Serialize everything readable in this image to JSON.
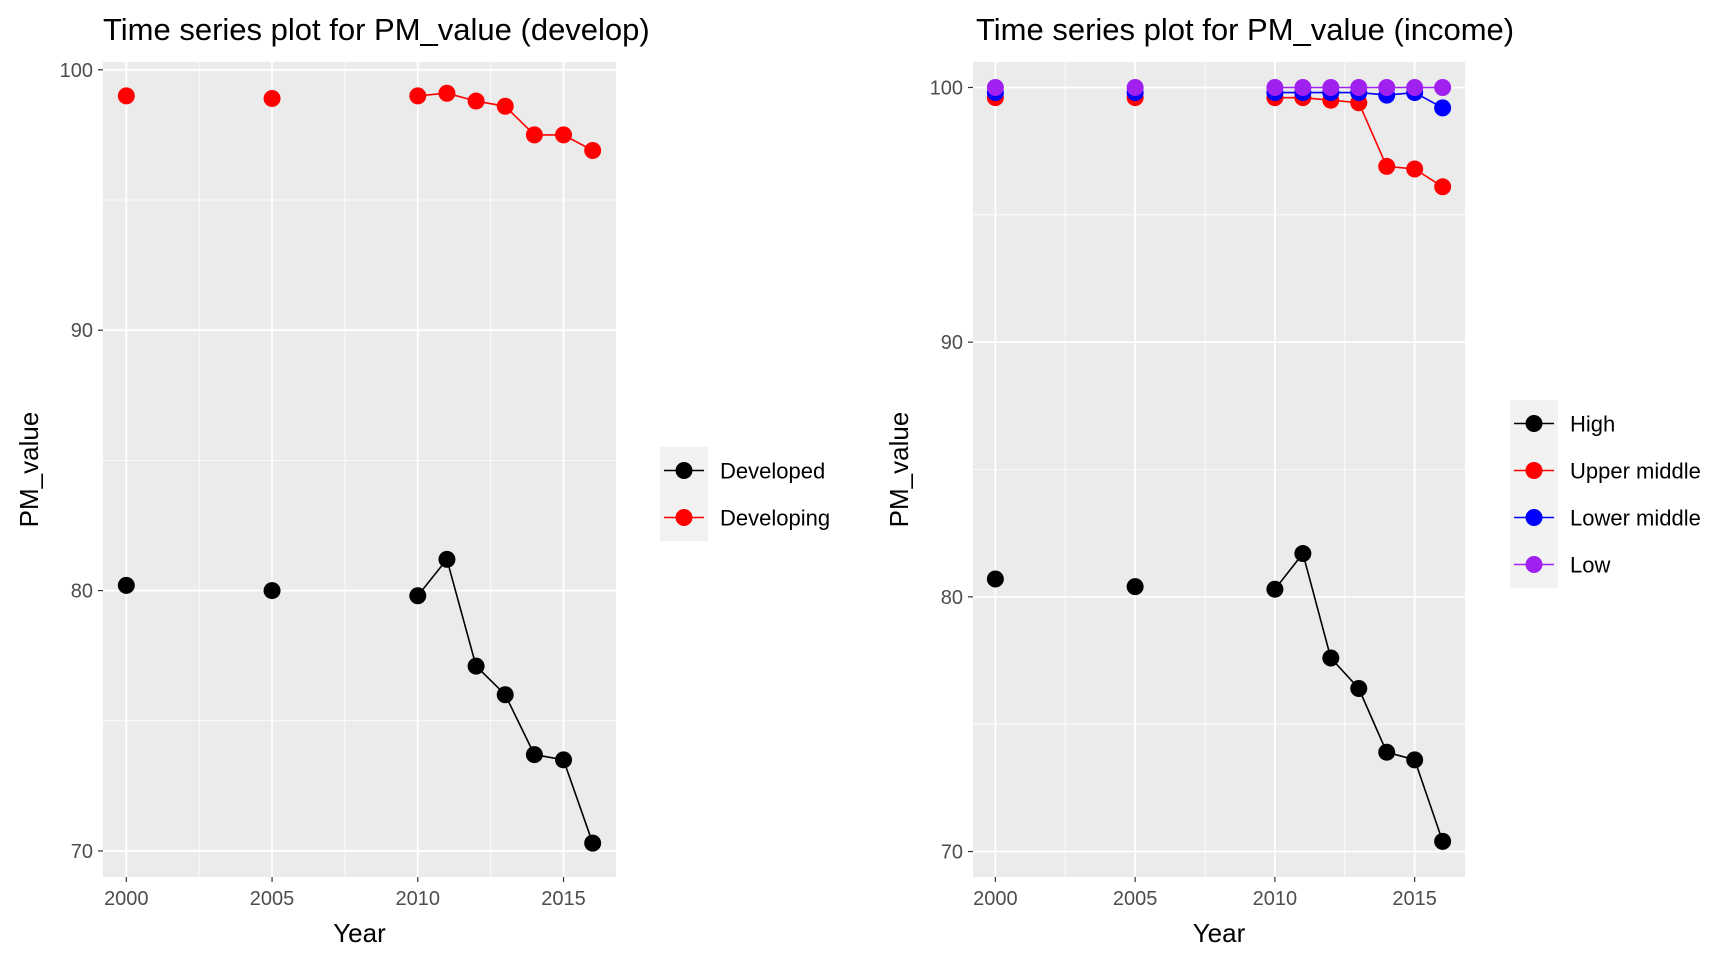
{
  "chart_data": [
    {
      "type": "line",
      "title": "Time series plot for PM_value (develop)",
      "xlabel": "Year",
      "ylabel": "PM_value",
      "xlim": [
        1999.2,
        2016.8
      ],
      "ylim": [
        69,
        100.3
      ],
      "xticks": [
        2000,
        2005,
        2010,
        2015
      ],
      "yticks": [
        70,
        80,
        90,
        100
      ],
      "grid": true,
      "legend_position": "right",
      "series": [
        {
          "name": "Developed",
          "color": "#000000",
          "x": [
            2000,
            2005,
            2010,
            2011,
            2012,
            2013,
            2014,
            2015,
            2016
          ],
          "values": [
            80.2,
            80.0,
            79.8,
            81.2,
            77.1,
            76.0,
            73.7,
            73.5,
            70.3
          ]
        },
        {
          "name": "Developing",
          "color": "#ff0000",
          "x": [
            2000,
            2005,
            2010,
            2011,
            2012,
            2013,
            2014,
            2015,
            2016
          ],
          "values": [
            99.0,
            98.9,
            99.0,
            99.1,
            98.8,
            98.6,
            97.5,
            97.5,
            96.9
          ]
        }
      ]
    },
    {
      "type": "line",
      "title": "Time series plot for PM_value (income)",
      "xlabel": "Year",
      "ylabel": "PM_value",
      "xlim": [
        1999.2,
        2016.8
      ],
      "ylim": [
        69,
        101
      ],
      "xticks": [
        2000,
        2005,
        2010,
        2015
      ],
      "yticks": [
        70,
        80,
        90,
        100
      ],
      "grid": true,
      "legend_position": "right",
      "series": [
        {
          "name": "High",
          "color": "#000000",
          "x": [
            2000,
            2005,
            2010,
            2011,
            2012,
            2013,
            2014,
            2015,
            2016
          ],
          "values": [
            80.7,
            80.4,
            80.3,
            81.7,
            77.6,
            76.4,
            73.9,
            73.6,
            70.4
          ]
        },
        {
          "name": "Upper middle",
          "color": "#ff0000",
          "x": [
            2000,
            2005,
            2010,
            2011,
            2012,
            2013,
            2014,
            2015,
            2016
          ],
          "values": [
            99.6,
            99.6,
            99.6,
            99.6,
            99.5,
            99.4,
            96.9,
            96.8,
            96.1
          ]
        },
        {
          "name": "Lower middle",
          "color": "#0000ff",
          "x": [
            2000,
            2005,
            2010,
            2011,
            2012,
            2013,
            2014,
            2015,
            2016
          ],
          "values": [
            99.8,
            99.8,
            99.8,
            99.8,
            99.8,
            99.8,
            99.7,
            99.8,
            99.2
          ]
        },
        {
          "name": "Low",
          "color": "#a020f0",
          "x": [
            2000,
            2005,
            2010,
            2011,
            2012,
            2013,
            2014,
            2015,
            2016
          ],
          "values": [
            100,
            100,
            100,
            100,
            100,
            100,
            100,
            100,
            100
          ]
        }
      ]
    }
  ]
}
